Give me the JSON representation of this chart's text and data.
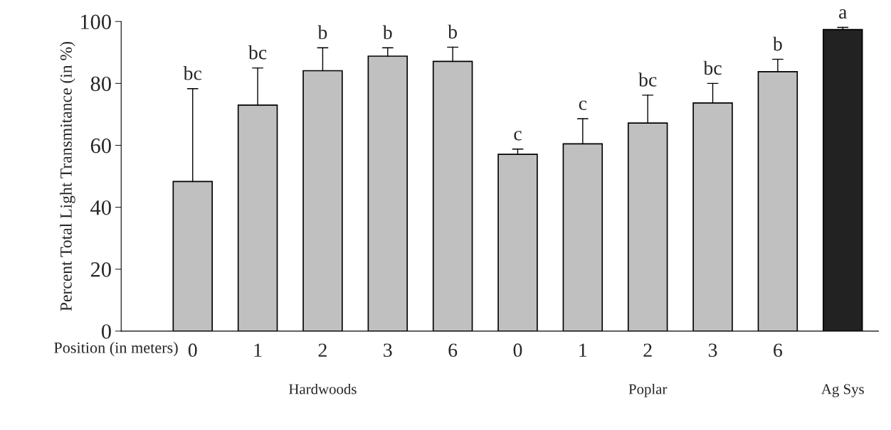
{
  "chart_data": {
    "type": "bar",
    "ylabel": "Percent Total Light Transmitance (in %)",
    "xlabel": "Position (in meters)",
    "categories": [
      "0",
      "1",
      "2",
      "3",
      "6",
      "0",
      "1",
      "2",
      "3",
      "6",
      null
    ],
    "values": [
      48.3,
      73.0,
      84.1,
      88.8,
      87.1,
      57.1,
      60.5,
      67.2,
      73.7,
      83.8,
      97.4
    ],
    "errors": [
      [
        48.3,
        78.3
      ],
      [
        73.0,
        85.0
      ],
      [
        84.1,
        91.5
      ],
      [
        88.8,
        91.5
      ],
      [
        87.1,
        91.7
      ],
      [
        57.1,
        58.8
      ],
      [
        60.5,
        68.6
      ],
      [
        67.2,
        76.2
      ],
      [
        73.7,
        80.0
      ],
      [
        83.8,
        87.8
      ],
      [
        97.4,
        98.1
      ]
    ],
    "colors": [
      "#c0c0c0",
      "#c0c0c0",
      "#c0c0c0",
      "#c0c0c0",
      "#c0c0c0",
      "#c0c0c0",
      "#c0c0c0",
      "#c0c0c0",
      "#c0c0c0",
      "#c0c0c0",
      "#222222"
    ],
    "ylim": [
      0,
      100
    ],
    "yticks": [
      0,
      20,
      40,
      60,
      80,
      100
    ],
    "annotations": [
      "bc",
      "bc",
      "b",
      "b",
      "b",
      "c",
      "c",
      "bc",
      "bc",
      "b",
      "a",
      "Hardwoods",
      "Poplar",
      "Ag Sys"
    ],
    "grid": false,
    "legend": false
  }
}
